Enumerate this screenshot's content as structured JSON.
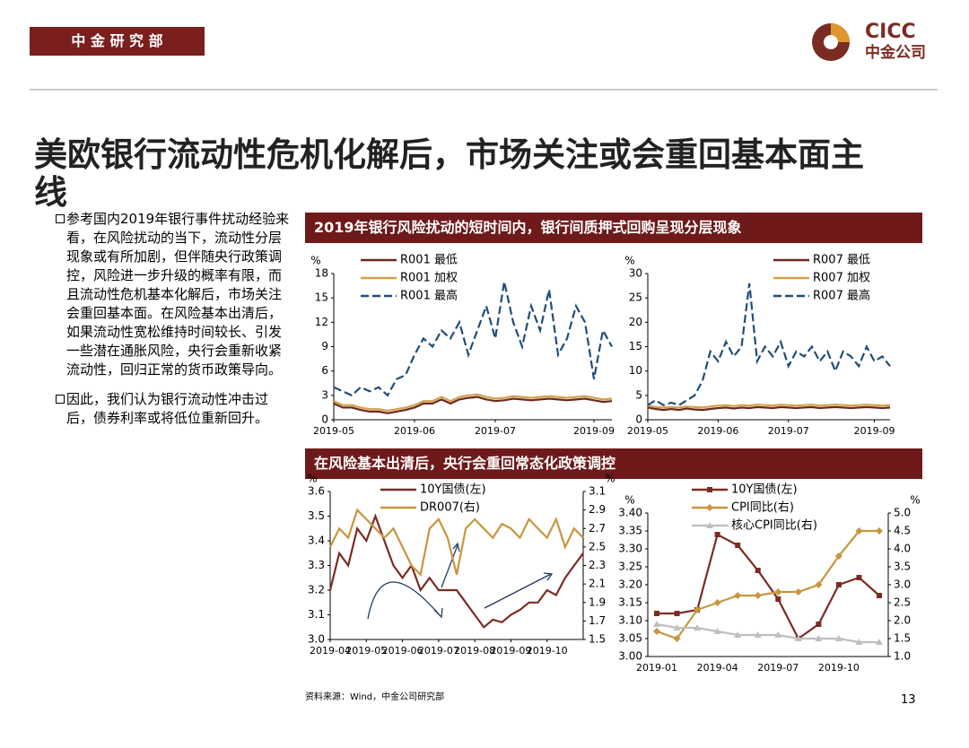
{
  "header": {
    "department": "中 金 研 究 部",
    "logo_en": "CICC",
    "logo_cn": "中金公司"
  },
  "title": "美欧银行流动性危机化解后，市场关注或会重回基本面主线",
  "bullets": [
    "参考国内2019年银行事件扰动经验来看，在风险扰动的当下，流动性分层现象或有所加剧，但伴随央行政策调控，风险进一步升级的概率有限，而且流动性危机基本化解后，市场关注会重回基本面。在风险基本出清后，如果流动性宽松维持时间较长、引发一些潜在通胀风险，央行会重新收紧流动性，回归正常的货币政策导向。",
    "因此，我们认为银行流动性冲击过后，债券利率或将低位重新回升。"
  ],
  "panels": [
    "2019年银行风险扰动的短时间内，银行间质押式回购呈现分层现象",
    "在风险基本出清后，央行会重回常态化政策调控"
  ],
  "source": "资料来源：Wind，中金公司研究部",
  "page_number": "13",
  "chart_data": [
    {
      "type": "line",
      "y_unit": "%",
      "legend": "upper left",
      "xlim": [
        0,
        31
      ],
      "xticks": [
        {
          "value": 0,
          "label": "2019-05"
        },
        {
          "value": 9,
          "label": "2019-06"
        },
        {
          "value": 18,
          "label": "2019-07"
        },
        {
          "value": 29,
          "label": "2019-09"
        }
      ],
      "ylim": [
        0,
        18
      ],
      "yticks": [
        0,
        3,
        6,
        9,
        12,
        15,
        18
      ],
      "series": [
        {
          "name": "R001 最低",
          "color": "#6b2a1f",
          "values": [
            2,
            1.5,
            1.5,
            1.2,
            1,
            1,
            0.8,
            1,
            1.2,
            1.5,
            2,
            2,
            2.5,
            2,
            2.5,
            2.7,
            2.8,
            2.5,
            2.3,
            2.4,
            2.6,
            2.5,
            2.4,
            2.5,
            2.6,
            2.5,
            2.4,
            2.5,
            2.6,
            2.4,
            2.2,
            2.3
          ]
        },
        {
          "name": "R001 加权",
          "color": "#d4a049",
          "values": [
            2.3,
            1.8,
            1.8,
            1.5,
            1.3,
            1.3,
            1.1,
            1.3,
            1.5,
            1.8,
            2.3,
            2.3,
            2.8,
            2.3,
            2.8,
            3,
            3.1,
            2.8,
            2.6,
            2.7,
            2.9,
            2.8,
            2.7,
            2.8,
            2.9,
            2.8,
            2.7,
            2.8,
            2.9,
            2.7,
            2.5,
            2.6
          ]
        },
        {
          "name": "R001 最高",
          "color": "#1f4e79",
          "style": "dashed",
          "values": [
            4,
            3.5,
            3,
            4,
            3.5,
            4,
            3,
            5,
            5.5,
            8,
            10,
            9,
            11,
            10,
            12,
            8,
            11,
            14,
            10,
            17,
            12,
            9,
            14,
            11,
            16,
            8,
            10,
            14,
            12,
            5,
            11,
            9
          ]
        }
      ]
    },
    {
      "type": "line",
      "y_unit": "%",
      "legend": "upper right",
      "xlim": [
        0,
        31
      ],
      "xticks": [
        {
          "value": 0,
          "label": "2019-05"
        },
        {
          "value": 9,
          "label": "2019-06"
        },
        {
          "value": 18,
          "label": "2019-07"
        },
        {
          "value": 29,
          "label": "2019-09"
        }
      ],
      "ylim": [
        0,
        30
      ],
      "yticks": [
        0,
        5,
        10,
        15,
        20,
        25,
        30
      ],
      "series": [
        {
          "name": "R007 最低",
          "color": "#6b2a1f",
          "values": [
            2.5,
            2.2,
            2,
            2.2,
            2,
            2.3,
            2.1,
            2,
            2.2,
            2.4,
            2.5,
            2.3,
            2.5,
            2.4,
            2.6,
            2.5,
            2.4,
            2.6,
            2.5,
            2.4,
            2.5,
            2.6,
            2.4,
            2.5,
            2.6,
            2.5,
            2.4,
            2.5,
            2.6,
            2.5,
            2.4,
            2.5
          ]
        },
        {
          "name": "R007 加权",
          "color": "#d4a049",
          "values": [
            2.9,
            2.6,
            2.5,
            2.6,
            2.5,
            2.7,
            2.6,
            2.5,
            2.7,
            2.9,
            3,
            2.8,
            3,
            2.9,
            3.1,
            3,
            2.9,
            3.1,
            3,
            2.9,
            3,
            3.1,
            2.9,
            3,
            3.1,
            3,
            2.9,
            3,
            3.1,
            3,
            2.9,
            3
          ]
        },
        {
          "name": "R007 最高",
          "color": "#1f4e79",
          "style": "dashed",
          "values": [
            3,
            4,
            3,
            3.5,
            3,
            4,
            5,
            8,
            14,
            12,
            16,
            13,
            15,
            28,
            12,
            15,
            13,
            16,
            11,
            14,
            13,
            15,
            12,
            14,
            10,
            14,
            13,
            11,
            15,
            12,
            13,
            11
          ]
        }
      ]
    },
    {
      "type": "line",
      "y_unit": "%",
      "y2_unit": "%",
      "legend": "upper center",
      "xlim": [
        0,
        28
      ],
      "xticks": [
        {
          "value": 0,
          "label": "2019-04"
        },
        {
          "value": 4,
          "label": "2019-05"
        },
        {
          "value": 8,
          "label": "2019-06"
        },
        {
          "value": 12,
          "label": "2019-07"
        },
        {
          "value": 16,
          "label": "2019-08"
        },
        {
          "value": 20,
          "label": "2019-09"
        },
        {
          "value": 24,
          "label": "2019-10"
        }
      ],
      "ylim": [
        3.0,
        3.6
      ],
      "yticks": [
        {
          "value": 3,
          "label": "3.0"
        },
        3.1,
        3.2,
        3.3,
        3.4,
        3.5,
        3.6
      ],
      "y2lim": [
        1.5,
        3.1
      ],
      "y2ticks": [
        1.5,
        1.7,
        1.9,
        2.1,
        2.3,
        2.5,
        2.7,
        2.9,
        3.1
      ],
      "series": [
        {
          "name": "10Y国债(左)",
          "color": "#7b2c22",
          "values": [
            3.2,
            3.35,
            3.3,
            3.45,
            3.4,
            3.5,
            3.4,
            3.3,
            3.25,
            3.3,
            3.2,
            3.25,
            3.2,
            3.2,
            3.2,
            3.15,
            3.1,
            3.05,
            3.08,
            3.07,
            3.1,
            3.12,
            3.15,
            3.15,
            3.2,
            3.18,
            3.25,
            3.3,
            3.35
          ]
        },
        {
          "name": "DR007(右)",
          "color": "#c8963e",
          "axis": "y2",
          "values": [
            2.5,
            2.7,
            2.6,
            2.9,
            2.8,
            2.7,
            2.6,
            2.7,
            2.5,
            2.3,
            2.2,
            2.7,
            2.8,
            2.6,
            2.2,
            2.7,
            2.8,
            2.7,
            2.6,
            2.75,
            2.7,
            2.6,
            2.8,
            2.7,
            2.6,
            2.8,
            2.5,
            2.7,
            2.6
          ]
        }
      ]
    },
    {
      "type": "line",
      "y_unit": "%",
      "y2_unit": "%",
      "legend": "upper center",
      "categories": [
        "2019-01",
        null,
        null,
        "2019-04",
        null,
        null,
        "2019-07",
        null,
        null,
        "2019-10",
        null,
        null
      ],
      "ylim": [
        3.0,
        3.4
      ],
      "yticks": [
        {
          "value": 3,
          "label": "3.00"
        },
        3.05,
        {
          "value": 3.1,
          "label": "3.10"
        },
        3.15,
        {
          "value": 3.2,
          "label": "3.20"
        },
        3.25,
        {
          "value": 3.3,
          "label": "3.30"
        },
        3.35,
        {
          "value": 3.4,
          "label": "3.40"
        }
      ],
      "y2lim": [
        1.0,
        5.0
      ],
      "y2ticks": [
        {
          "value": 1,
          "label": "1.0"
        },
        1.5,
        {
          "value": 2,
          "label": "2.0"
        },
        2.5,
        {
          "value": 3,
          "label": "3.0"
        },
        3.5,
        {
          "value": 4,
          "label": "4.0"
        },
        4.5,
        {
          "value": 5,
          "label": "5.0"
        }
      ],
      "series": [
        {
          "name": "10Y国债(左)",
          "color": "#7b2c22",
          "marker": "square",
          "values": [
            3.12,
            3.12,
            3.13,
            3.34,
            3.31,
            3.24,
            3.16,
            3.05,
            3.09,
            3.2,
            3.22,
            3.17
          ]
        },
        {
          "name": "CPI同比(右)",
          "color": "#c8963e",
          "marker": "diamond",
          "axis": "y2",
          "values": [
            1.7,
            1.5,
            2.3,
            2.5,
            2.7,
            2.7,
            2.8,
            2.8,
            3.0,
            3.8,
            4.5,
            4.5
          ]
        },
        {
          "name": "核心CPI同比(右)",
          "color": "#bfbfbf",
          "marker": "triangle",
          "axis": "y2",
          "values": [
            1.9,
            1.8,
            1.8,
            1.7,
            1.6,
            1.6,
            1.6,
            1.5,
            1.5,
            1.5,
            1.4,
            1.4
          ]
        }
      ]
    }
  ]
}
